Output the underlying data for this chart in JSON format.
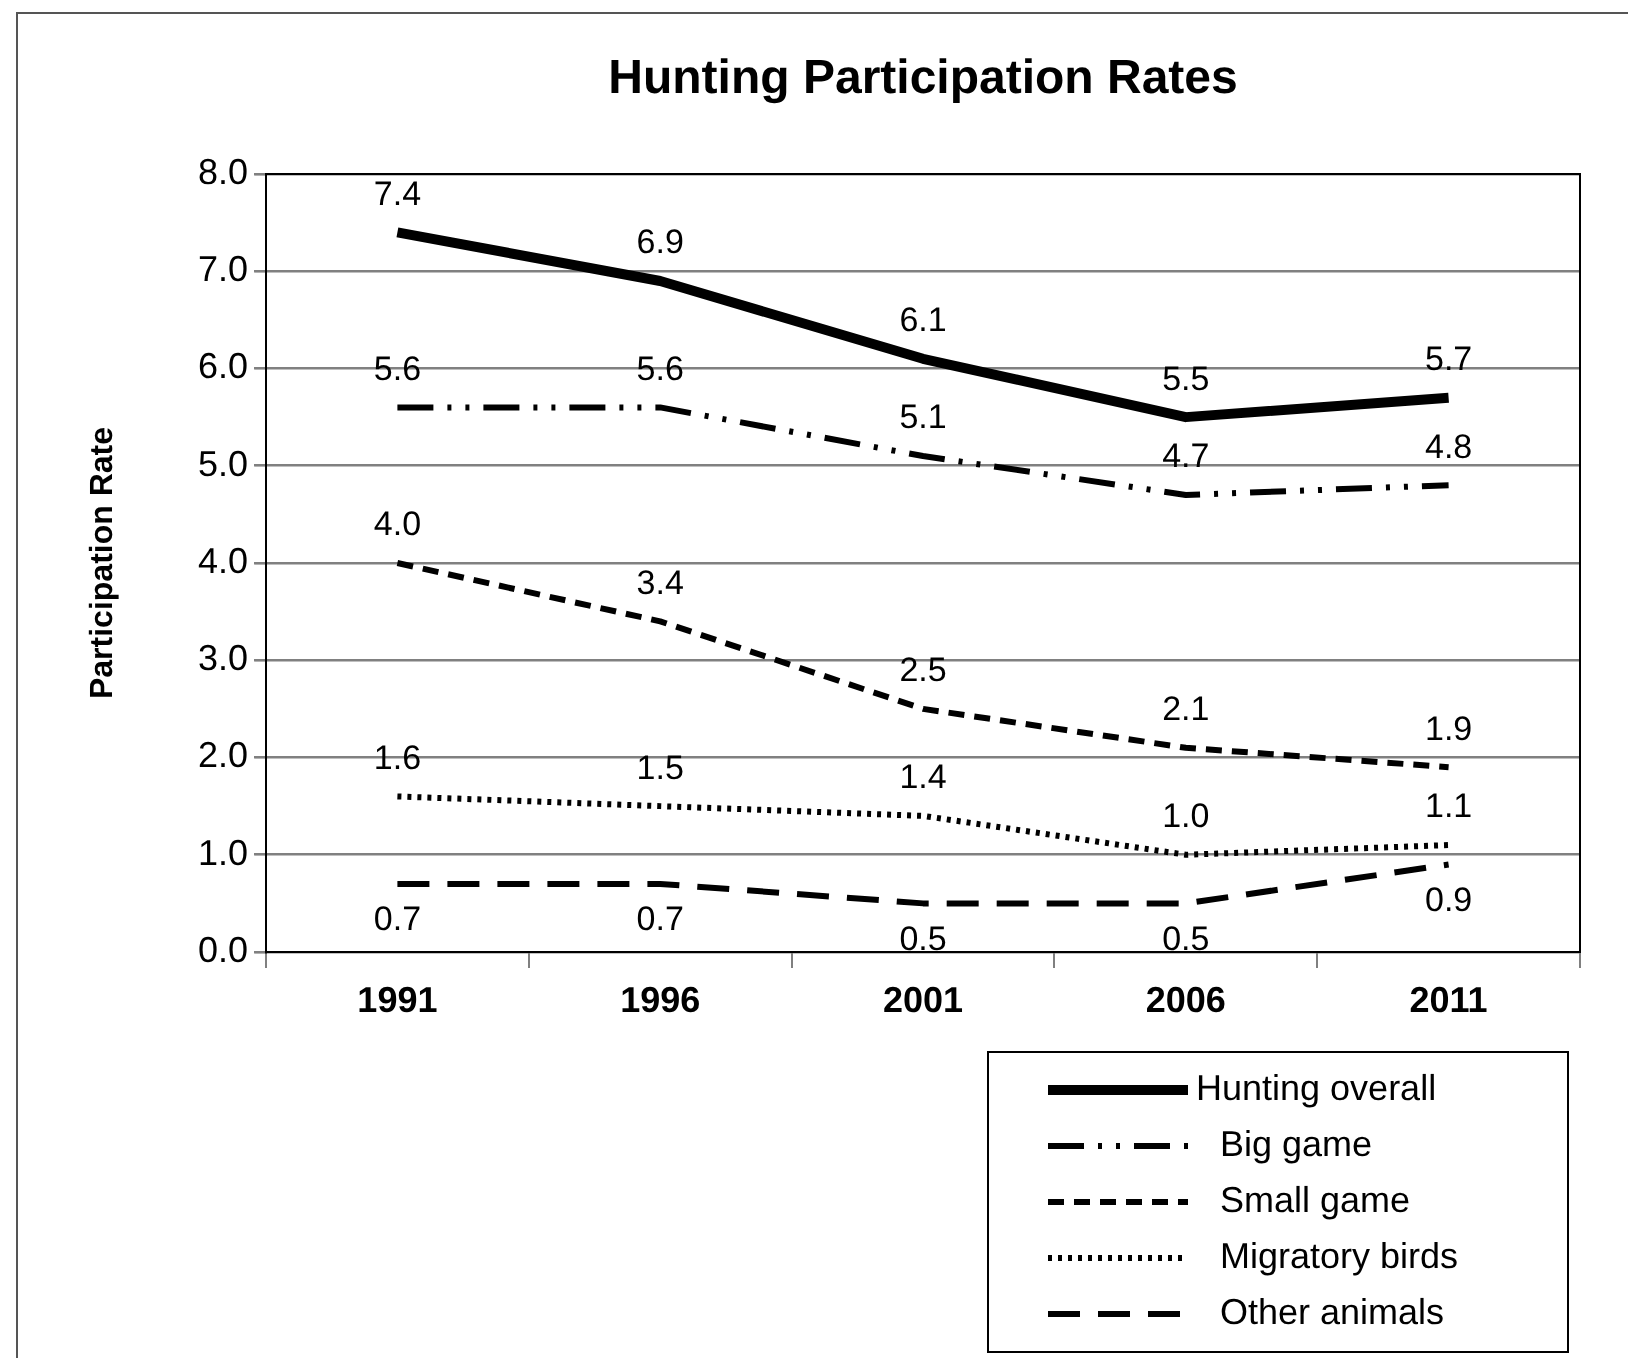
{
  "chart_data": {
    "type": "line",
    "title": "Hunting Participation Rates",
    "ylabel": "Participation Rate",
    "categories": [
      "1991",
      "1996",
      "2001",
      "2006",
      "2011"
    ],
    "series": [
      {
        "name": "Hunting overall",
        "color": "#000000",
        "line_style": "solid",
        "values": [
          7.4,
          6.9,
          6.1,
          5.5,
          5.7
        ],
        "value_labels": [
          "7.4",
          "6.9",
          "6.1",
          "5.5",
          "5.7"
        ]
      },
      {
        "name": "Big game",
        "color": "#000000",
        "line_style": "dashdot",
        "values": [
          5.6,
          5.6,
          5.1,
          4.7,
          4.8
        ],
        "value_labels": [
          "5.6",
          "5.6",
          "5.1",
          "4.7",
          "4.8"
        ]
      },
      {
        "name": "Small game",
        "color": "#000000",
        "line_style": "dashed",
        "values": [
          4.0,
          3.4,
          2.5,
          2.1,
          1.9
        ],
        "value_labels": [
          "4.0",
          "3.4",
          "2.5",
          "2.1",
          "1.9"
        ]
      },
      {
        "name": "Migratory birds",
        "color": "#000000",
        "line_style": "dotted",
        "values": [
          1.6,
          1.5,
          1.4,
          1.0,
          1.1
        ],
        "value_labels": [
          "1.6",
          "1.5",
          "1.4",
          "1.0",
          "1.1"
        ]
      },
      {
        "name": "Other animals",
        "color": "#000000",
        "line_style": "longdash",
        "values": [
          0.7,
          0.7,
          0.5,
          0.5,
          0.9
        ],
        "value_labels": [
          "0.7",
          "0.7",
          "0.5",
          "0.5",
          "0.9"
        ]
      }
    ],
    "ylim": [
      0,
      8
    ],
    "yticks": [
      {
        "value": 0,
        "label": "0.0"
      },
      {
        "value": 1,
        "label": "1.0"
      },
      {
        "value": 2,
        "label": "2.0"
      },
      {
        "value": 3,
        "label": "3.0"
      },
      {
        "value": 4,
        "label": "4.0"
      },
      {
        "value": 5,
        "label": "5.0"
      },
      {
        "value": 6,
        "label": "6.0"
      },
      {
        "value": 7,
        "label": "7.0"
      },
      {
        "value": 8,
        "label": "8.0"
      }
    ],
    "grid": "y",
    "legend": "bottom right",
    "marker": "none"
  }
}
